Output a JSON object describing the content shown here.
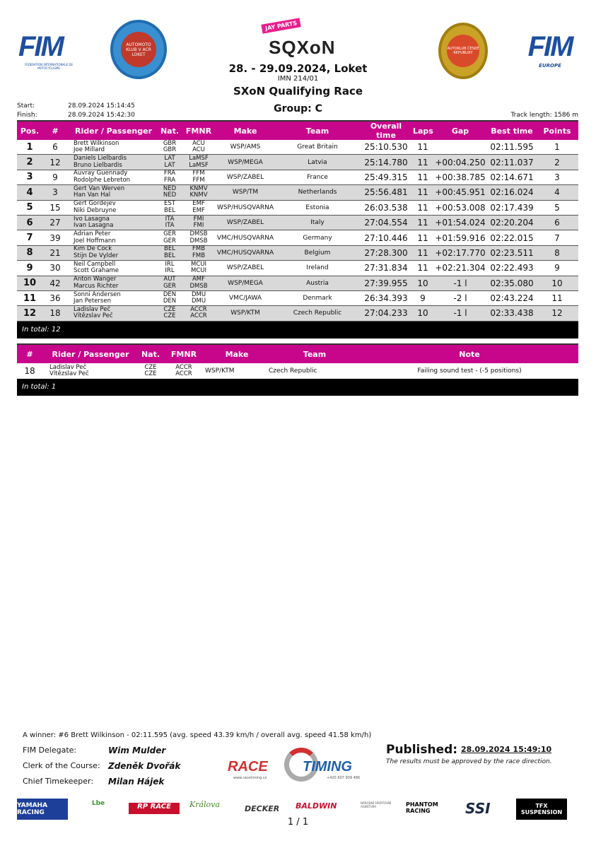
{
  "header": {
    "fim_left": "FIM",
    "fim_left_sub": "FEDERATION INTERNATIONALE DE MOTOCYCLISME",
    "club_logo": "AUTOMOTO KLUB V ACR LOKET",
    "event_logo": "JAY PARTS SQXON",
    "accr_logo": "AUTOKLUB ČESKÉ REPUBLIKY",
    "fim_right": "FIM",
    "fim_right_sub": "EUROPE",
    "date_place": "28. - 29.09.2024, Loket",
    "imn": "IMN 214/01",
    "race": "SXoN Qualifying Race",
    "group": "Group:  C",
    "start_label": "Start:",
    "start_value": "28.09.2024 15:14:45",
    "finish_label": "Finish:",
    "finish_value": "28.09.2024 15:42:30",
    "track_length": "Track length: 1586 m"
  },
  "results": {
    "columns": [
      "Pos.",
      "#",
      "Rider / Passenger",
      "Nat.",
      "FMNR",
      "Make",
      "Team",
      "Overall time",
      "Laps",
      "Gap",
      "Best time",
      "Points"
    ],
    "rows": [
      {
        "pos": "1",
        "num": "6",
        "rider": "Brett Wilkinson",
        "passenger": "Joe Millard",
        "nat1": "GBR",
        "nat2": "GBR",
        "fm1": "ACU",
        "fm2": "ACU",
        "make": "WSP/AMS",
        "team": "Great Britain",
        "time": "25:10.530",
        "laps": "11",
        "gap": "",
        "best": "02:11.595",
        "points": "1"
      },
      {
        "pos": "2",
        "num": "12",
        "rider": "Daniels Lielbardis",
        "passenger": "Bruno Lielbardis",
        "nat1": "LAT",
        "nat2": "LAT",
        "fm1": "LaMSF",
        "fm2": "LaMSF",
        "make": "WSP/MEGA",
        "team": "Latvia",
        "time": "25:14.780",
        "laps": "11",
        "gap": "+00:04.250",
        "best": "02:11.037",
        "points": "2"
      },
      {
        "pos": "3",
        "num": "9",
        "rider": "Auvray  Guennady",
        "passenger": "Rodolphe Lebreton",
        "nat1": "FRA",
        "nat2": "FRA",
        "fm1": "FFM",
        "fm2": "FFM",
        "make": "WSP/ZABEL",
        "team": "France",
        "time": "25:49.315",
        "laps": "11",
        "gap": "+00:38.785",
        "best": "02:14.671",
        "points": "3"
      },
      {
        "pos": "4",
        "num": "3",
        "rider": "Gert Van Werven",
        "passenger": "Han Van Hal",
        "nat1": "NED",
        "nat2": "NED",
        "fm1": "KNMV",
        "fm2": "KNMV",
        "make": "WSP/TM",
        "team": "Netherlands",
        "time": "25:56.481",
        "laps": "11",
        "gap": "+00:45.951",
        "best": "02:16.024",
        "points": "4"
      },
      {
        "pos": "5",
        "num": "15",
        "rider": "Gert Gordejev",
        "passenger": "Niki Debruyne",
        "nat1": "EST",
        "nat2": "BEL",
        "fm1": "EMF",
        "fm2": "EMF",
        "make": "WSP/HUSQVARNA",
        "team": "Estonia",
        "time": "26:03.538",
        "laps": "11",
        "gap": "+00:53.008",
        "best": "02:17.439",
        "points": "5"
      },
      {
        "pos": "6",
        "num": "27",
        "rider": "Ivo Lasagna",
        "passenger": "Ivan Lasagna",
        "nat1": "ITA",
        "nat2": "ITA",
        "fm1": "FMI",
        "fm2": "FMI",
        "make": "WSP/ZABEL",
        "team": "Italy",
        "time": "27:04.554",
        "laps": "11",
        "gap": "+01:54.024",
        "best": "02:20.204",
        "points": "6"
      },
      {
        "pos": "7",
        "num": "39",
        "rider": "Adrian Peter",
        "passenger": "Joel  Hoffmann",
        "nat1": "GER",
        "nat2": "GER",
        "fm1": "DMSB",
        "fm2": "DMSB",
        "make": "VMC/HUSQVARNA",
        "team": "Germany",
        "time": "27:10.446",
        "laps": "11",
        "gap": "+01:59.916",
        "best": "02:22.015",
        "points": "7"
      },
      {
        "pos": "8",
        "num": "21",
        "rider": "Kim De Cock",
        "passenger": "Stijn De Vylder",
        "nat1": "BEL",
        "nat2": "BEL",
        "fm1": "FMB",
        "fm2": "FMB",
        "make": "VMC/HUSQVARNA",
        "team": "Belgium",
        "time": "27:28.300",
        "laps": "11",
        "gap": "+02:17.770",
        "best": "02:23.511",
        "points": "8"
      },
      {
        "pos": "9",
        "num": "30",
        "rider": "Neil Campbell",
        "passenger": "Scott Grahame",
        "nat1": "IRL",
        "nat2": "IRL",
        "fm1": "MCUI",
        "fm2": "MCUI",
        "make": "WSP/ZABEL",
        "team": "Ireland",
        "time": "27:31.834",
        "laps": "11",
        "gap": "+02:21.304",
        "best": "02:22.493",
        "points": "9"
      },
      {
        "pos": "10",
        "num": "42",
        "rider": "Anton Wanger",
        "passenger": "Marcus Richter",
        "nat1": "AUT",
        "nat2": "GER",
        "fm1": "AMF",
        "fm2": "DMSB",
        "make": "WSP/MEGA",
        "team": "Austria",
        "time": "27:39.955",
        "laps": "10",
        "gap": "-1 l",
        "best": "02:35.080",
        "points": "10"
      },
      {
        "pos": "11",
        "num": "36",
        "rider": "Sonni Andersen",
        "passenger": "Jan Petersen",
        "nat1": "DEN",
        "nat2": "DEN",
        "fm1": "DMU",
        "fm2": "DMU",
        "make": "VMC/JAWA",
        "team": "Denmark",
        "time": "26:34.393",
        "laps": "9",
        "gap": "-2 l",
        "best": "02:43.224",
        "points": "11"
      },
      {
        "pos": "12",
        "num": "18",
        "rider": "Ladislav Peč",
        "passenger": "Vítězslav Peč",
        "nat1": "CZE",
        "nat2": "CZE",
        "fm1": "ACCR",
        "fm2": "ACCR",
        "make": "WSP/KTM",
        "team": "Czech Republic",
        "time": "27:04.233",
        "laps": "10",
        "gap": "-1 l",
        "best": "02:33.438",
        "points": "12"
      }
    ],
    "total": "In total: 12"
  },
  "penalties": {
    "columns": [
      "#",
      "Rider / Passenger",
      "Nat.",
      "FMNR",
      "Make",
      "Team",
      "Note"
    ],
    "rows": [
      {
        "num": "18",
        "rider": "Ladislav Peč",
        "passenger": "Vítězslav Peč",
        "nat1": "CZE",
        "nat2": "CZE",
        "fm1": "ACCR",
        "fm2": "ACCR",
        "make": "WSP/KTM",
        "team": "Czech Republic",
        "note": "Failing sound test - (-5 positions)"
      }
    ],
    "total": "In total: 1"
  },
  "footer": {
    "winner": "A winner: #6 Brett Wilkinson - 02:11.595 (avg. speed 43.39 km/h / overall avg. speed 41.58 km/h)",
    "officials": [
      {
        "label": "FIM Delegate:",
        "name": "Wim Mulder"
      },
      {
        "label": "Clerk of the Course:",
        "name": "Zdeněk Dvořák"
      },
      {
        "label": "Chief Timekeeper:",
        "name": "Milan Hájek"
      }
    ],
    "published_label": "Published:",
    "published_value": "28.09.2024 15:49:10",
    "approval": "The results must be approved by the race direction.",
    "racetiming_logo": "RACE TIMING",
    "racetiming_url": "www.racetiming.cz",
    "racetiming_phone": "+420 607 909 486",
    "sponsors": [
      "YAMAHA RACING",
      "Lbe",
      "RP RACE",
      "Králova",
      "DECKER",
      "BALDWIN",
      "NÁRODNÍ SPORTOVNÍ AGENTURA",
      "PHANTOM RACING",
      "SSI",
      "TFX SUSPENSION"
    ],
    "page": "1 / 1"
  },
  "colors": {
    "header_bg": "#c8068c",
    "alt_row": "#d9d9d9",
    "total_bg": "#000000",
    "fim_blue": "#1d4fa0"
  }
}
